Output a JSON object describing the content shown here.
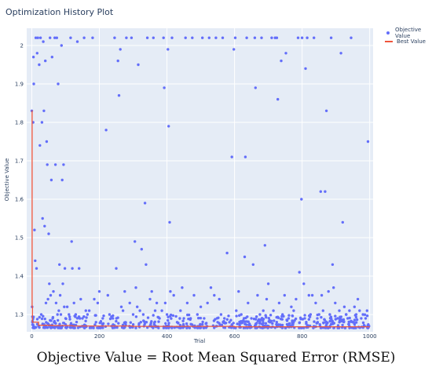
{
  "chart_data": {
    "type": "scatter",
    "title": "Optimization History Plot",
    "xlabel": "Trial",
    "ylabel": "Objective Value",
    "xlim": [
      -15,
      1010
    ],
    "ylim": [
      1.255,
      2.045
    ],
    "xticks": [
      0,
      200,
      400,
      600,
      800,
      1000
    ],
    "yticks": [
      1.3,
      1.4,
      1.5,
      1.6,
      1.7,
      1.8,
      1.9,
      2
    ],
    "grid": true,
    "legend_position": "top-right",
    "series": [
      {
        "name": "Objective Value",
        "kind": "markers",
        "color": "#636efa",
        "n_trials": 1000,
        "points": [
          [
            0,
            1.83
          ],
          [
            1,
            1.32
          ],
          [
            2,
            1.28
          ],
          [
            4,
            1.8
          ],
          [
            5,
            1.97
          ],
          [
            6,
            1.9
          ],
          [
            8,
            1.52
          ],
          [
            10,
            1.44
          ],
          [
            12,
            2.02
          ],
          [
            14,
            1.42
          ],
          [
            16,
            1.98
          ],
          [
            18,
            2.02
          ],
          [
            20,
            1.27
          ],
          [
            22,
            1.95
          ],
          [
            24,
            1.74
          ],
          [
            26,
            2.02
          ],
          [
            28,
            1.3
          ],
          [
            30,
            1.8
          ],
          [
            32,
            1.55
          ],
          [
            34,
            2.01
          ],
          [
            36,
            1.83
          ],
          [
            38,
            1.53
          ],
          [
            40,
            1.96
          ],
          [
            42,
            1.33
          ],
          [
            44,
            1.75
          ],
          [
            46,
            1.69
          ],
          [
            48,
            1.34
          ],
          [
            50,
            1.51
          ],
          [
            52,
            1.38
          ],
          [
            54,
            2.02
          ],
          [
            56,
            1.35
          ],
          [
            58,
            1.65
          ],
          [
            60,
            1.97
          ],
          [
            62,
            1.29
          ],
          [
            64,
            1.36
          ],
          [
            66,
            1.28
          ],
          [
            68,
            2.02
          ],
          [
            70,
            1.69
          ],
          [
            72,
            1.33
          ],
          [
            74,
            2.02
          ],
          [
            76,
            1.3
          ],
          [
            78,
            1.9
          ],
          [
            80,
            1.31
          ],
          [
            82,
            1.43
          ],
          [
            84,
            1.35
          ],
          [
            86,
            1.3
          ],
          [
            88,
            2.0
          ],
          [
            90,
            1.65
          ],
          [
            92,
            1.38
          ],
          [
            94,
            1.69
          ],
          [
            96,
            1.32
          ],
          [
            98,
            1.42
          ],
          [
            100,
            1.29
          ],
          [
            105,
            1.32
          ],
          [
            110,
            1.3
          ],
          [
            115,
            2.02
          ],
          [
            118,
            1.49
          ],
          [
            120,
            1.42
          ],
          [
            125,
            1.33
          ],
          [
            130,
            1.3
          ],
          [
            135,
            2.01
          ],
          [
            140,
            1.42
          ],
          [
            145,
            1.34
          ],
          [
            150,
            1.29
          ],
          [
            155,
            2.02
          ],
          [
            160,
            1.31
          ],
          [
            165,
            1.3
          ],
          [
            170,
            1.31
          ],
          [
            180,
            2.02
          ],
          [
            185,
            1.34
          ],
          [
            190,
            1.28
          ],
          [
            195,
            1.33
          ],
          [
            200,
            1.36
          ],
          [
            210,
            1.29
          ],
          [
            220,
            1.78
          ],
          [
            225,
            1.35
          ],
          [
            230,
            1.3
          ],
          [
            240,
            1.29
          ],
          [
            245,
            2.02
          ],
          [
            250,
            1.42
          ],
          [
            255,
            1.96
          ],
          [
            258,
            1.87
          ],
          [
            262,
            1.99
          ],
          [
            265,
            1.32
          ],
          [
            270,
            1.31
          ],
          [
            275,
            1.36
          ],
          [
            280,
            2.02
          ],
          [
            290,
            1.33
          ],
          [
            295,
            2.02
          ],
          [
            300,
            1.3
          ],
          [
            305,
            1.49
          ],
          [
            308,
            1.37
          ],
          [
            312,
            1.32
          ],
          [
            315,
            1.95
          ],
          [
            320,
            1.31
          ],
          [
            325,
            1.47
          ],
          [
            330,
            1.3
          ],
          [
            335,
            1.59
          ],
          [
            338,
            1.43
          ],
          [
            342,
            2.02
          ],
          [
            350,
            1.34
          ],
          [
            355,
            1.36
          ],
          [
            360,
            2.02
          ],
          [
            365,
            1.31
          ],
          [
            370,
            1.33
          ],
          [
            378,
            1.29
          ],
          [
            385,
            1.31
          ],
          [
            390,
            2.02
          ],
          [
            392,
            1.89
          ],
          [
            395,
            1.33
          ],
          [
            400,
            1.3
          ],
          [
            403,
            1.99
          ],
          [
            405,
            1.79
          ],
          [
            408,
            1.54
          ],
          [
            410,
            1.36
          ],
          [
            415,
            2.02
          ],
          [
            420,
            1.35
          ],
          [
            430,
            1.28
          ],
          [
            440,
            1.31
          ],
          [
            445,
            1.37
          ],
          [
            450,
            1.29
          ],
          [
            455,
            2.02
          ],
          [
            460,
            1.33
          ],
          [
            470,
            1.29
          ],
          [
            475,
            2.02
          ],
          [
            480,
            1.35
          ],
          [
            490,
            1.3
          ],
          [
            500,
            1.32
          ],
          [
            505,
            2.02
          ],
          [
            510,
            1.29
          ],
          [
            520,
            1.33
          ],
          [
            525,
            2.02
          ],
          [
            530,
            1.37
          ],
          [
            540,
            1.35
          ],
          [
            545,
            2.02
          ],
          [
            550,
            1.28
          ],
          [
            555,
            1.34
          ],
          [
            560,
            1.3
          ],
          [
            565,
            2.02
          ],
          [
            570,
            1.29
          ],
          [
            578,
            1.46
          ],
          [
            585,
            1.28
          ],
          [
            592,
            1.71
          ],
          [
            598,
            1.99
          ],
          [
            602,
            2.02
          ],
          [
            605,
            1.31
          ],
          [
            612,
            1.36
          ],
          [
            620,
            1.3
          ],
          [
            630,
            1.45
          ],
          [
            632,
            1.71
          ],
          [
            636,
            2.02
          ],
          [
            640,
            1.33
          ],
          [
            650,
            1.29
          ],
          [
            655,
            1.43
          ],
          [
            660,
            2.02
          ],
          [
            662,
            1.89
          ],
          [
            668,
            1.35
          ],
          [
            675,
            1.3
          ],
          [
            680,
            2.02
          ],
          [
            685,
            1.31
          ],
          [
            690,
            1.48
          ],
          [
            695,
            1.34
          ],
          [
            700,
            1.38
          ],
          [
            705,
            1.28
          ],
          [
            710,
            2.02
          ],
          [
            715,
            1.31
          ],
          [
            720,
            2.02
          ],
          [
            725,
            2.02
          ],
          [
            728,
            1.86
          ],
          [
            732,
            1.33
          ],
          [
            738,
            1.96
          ],
          [
            742,
            1.3
          ],
          [
            748,
            1.35
          ],
          [
            752,
            1.98
          ],
          [
            760,
            1.29
          ],
          [
            768,
            1.32
          ],
          [
            775,
            1.31
          ],
          [
            782,
            1.34
          ],
          [
            788,
            2.02
          ],
          [
            792,
            1.41
          ],
          [
            798,
            1.6
          ],
          [
            800,
            2.02
          ],
          [
            805,
            1.38
          ],
          [
            810,
            1.94
          ],
          [
            815,
            2.02
          ],
          [
            820,
            1.35
          ],
          [
            825,
            1.3
          ],
          [
            830,
            1.35
          ],
          [
            835,
            2.02
          ],
          [
            840,
            1.33
          ],
          [
            845,
            1.29
          ],
          [
            850,
            1.3
          ],
          [
            855,
            1.62
          ],
          [
            858,
            1.35
          ],
          [
            862,
            1.31
          ],
          [
            868,
            1.62
          ],
          [
            872,
            1.83
          ],
          [
            878,
            1.36
          ],
          [
            882,
            1.3
          ],
          [
            886,
            2.02
          ],
          [
            890,
            1.43
          ],
          [
            893,
            1.37
          ],
          [
            898,
            1.33
          ],
          [
            905,
            1.29
          ],
          [
            910,
            1.31
          ],
          [
            915,
            1.98
          ],
          [
            920,
            1.54
          ],
          [
            925,
            1.32
          ],
          [
            930,
            1.3
          ],
          [
            935,
            1.29
          ],
          [
            940,
            1.31
          ],
          [
            945,
            2.02
          ],
          [
            950,
            1.28
          ],
          [
            955,
            1.32
          ],
          [
            960,
            1.3
          ],
          [
            965,
            1.34
          ],
          [
            970,
            1.31
          ],
          [
            975,
            1.29
          ],
          [
            980,
            1.3
          ],
          [
            985,
            1.27
          ],
          [
            988,
            1.29
          ],
          [
            992,
            1.31
          ],
          [
            995,
            1.75
          ],
          [
            998,
            1.27
          ]
        ],
        "band": {
          "x_range": [
            2,
            1000
          ],
          "y_range": [
            1.265,
            1.3
          ],
          "count": 550,
          "seed": 7
        }
      },
      {
        "name": "Best Value",
        "kind": "step-line",
        "color": "#ef553b",
        "points": [
          [
            0,
            1.83
          ],
          [
            1,
            1.32
          ],
          [
            2,
            1.28
          ],
          [
            20,
            1.272
          ],
          [
            60,
            1.271
          ],
          [
            120,
            1.27
          ],
          [
            300,
            1.269
          ],
          [
            600,
            1.268
          ],
          [
            1000,
            1.268
          ]
        ]
      }
    ]
  },
  "caption": "Objective Value = Root Mean Squared Error (RMSE)"
}
